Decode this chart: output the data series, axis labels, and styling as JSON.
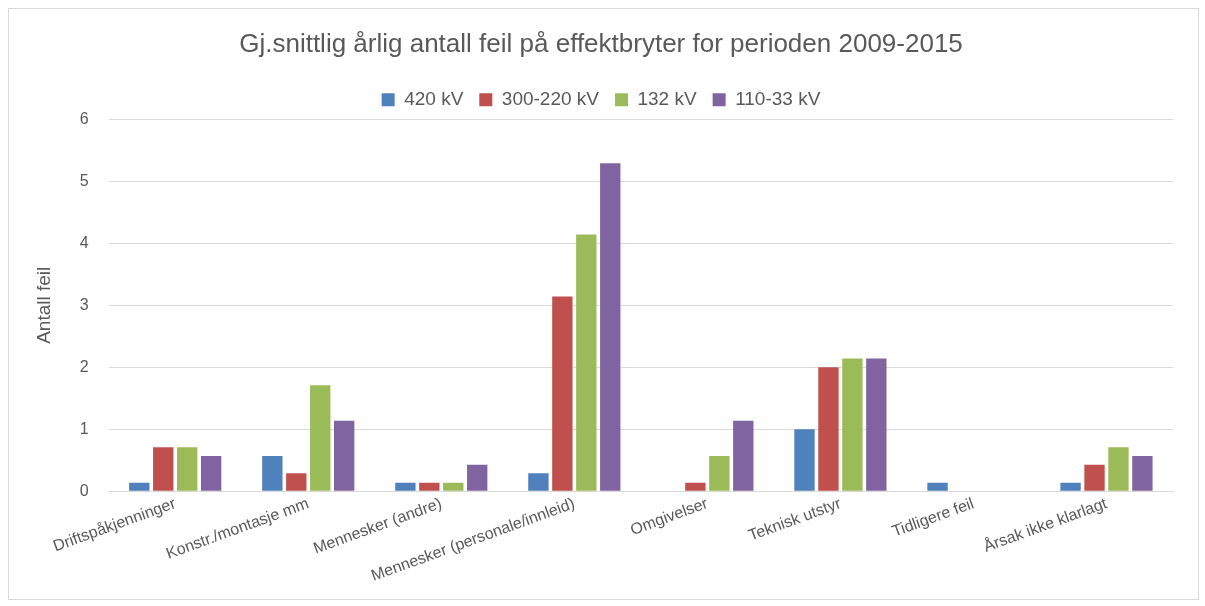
{
  "chart_data": {
    "type": "bar",
    "title": "Gj.snittlig årlig antall feil på effektbryter for perioden 2009-2015",
    "ylabel": "Antall feil",
    "categories": [
      "Driftspåkjenninger",
      "Konstr./montasje mm",
      "Mennesker (andre)",
      "Mennesker (personale/innleid)",
      "Omgivelser",
      "Teknisk utstyr",
      "Tidligere feil",
      "Årsak ikke klarlagt"
    ],
    "series": [
      {
        "name": "420 kV",
        "color": "#4f81bd",
        "values": [
          0.14,
          0.57,
          0.14,
          0.29,
          0,
          1.0,
          0.14,
          0.14
        ]
      },
      {
        "name": "300-220 kV",
        "color": "#c0504d",
        "values": [
          0.71,
          0.29,
          0.14,
          3.14,
          0.14,
          2.0,
          0,
          0.43
        ]
      },
      {
        "name": "132 kV",
        "color": "#9bbb59",
        "values": [
          0.71,
          1.71,
          0.14,
          4.14,
          0.57,
          2.14,
          0,
          0.71
        ]
      },
      {
        "name": "110-33 kV",
        "color": "#8064a2",
        "values": [
          0.57,
          1.14,
          0.43,
          5.29,
          1.14,
          2.14,
          0,
          0.57
        ]
      }
    ],
    "ylim": [
      0,
      6
    ],
    "yticks": [
      0,
      1,
      2,
      3,
      4,
      5,
      6
    ],
    "grid": "y",
    "legend": "top"
  }
}
